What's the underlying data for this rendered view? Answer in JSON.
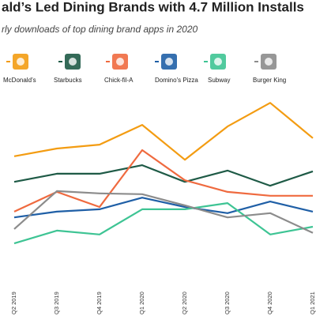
{
  "chart_data": {
    "type": "line",
    "title": "ald’s Led Dining Brands with 4.7 Million Installs",
    "subtitle": "rly downloads of top dining brand apps in 2020",
    "categories": [
      "Q2 2019",
      "Q3 2019",
      "Q4 2019",
      "Q1 2020",
      "Q2 2020",
      "Q3 2020",
      "Q4 2020",
      "Q1 2021"
    ],
    "series": [
      {
        "name": "McDonald’s",
        "color": "#f39c12",
        "values": [
          3.31,
          3.51,
          3.61,
          4.12,
          3.22,
          4.08,
          4.69,
          3.78
        ]
      },
      {
        "name": "Starbucks",
        "color": "#1e5a46",
        "values": [
          2.65,
          2.86,
          2.86,
          3.08,
          2.65,
          2.94,
          2.55,
          2.92
        ]
      },
      {
        "name": "Chick-fil-A",
        "color": "#ef6a3f",
        "values": [
          1.88,
          2.39,
          2.0,
          3.47,
          2.69,
          2.39,
          2.29,
          2.29
        ]
      },
      {
        "name": "Domino's Pizza",
        "color": "#1f5fa6",
        "values": [
          1.73,
          1.88,
          1.94,
          2.24,
          2.0,
          1.84,
          2.14,
          1.88
        ]
      },
      {
        "name": "Subway",
        "color": "#3ec494",
        "values": [
          1.06,
          1.39,
          1.29,
          1.94,
          1.94,
          2.1,
          1.29,
          1.49
        ]
      },
      {
        "name": "Burger King",
        "color": "#8c8c8c",
        "values": [
          1.43,
          2.41,
          2.35,
          2.33,
          2.04,
          1.73,
          1.84,
          1.33
        ]
      }
    ],
    "ylim": [
      0,
      5
    ]
  }
}
